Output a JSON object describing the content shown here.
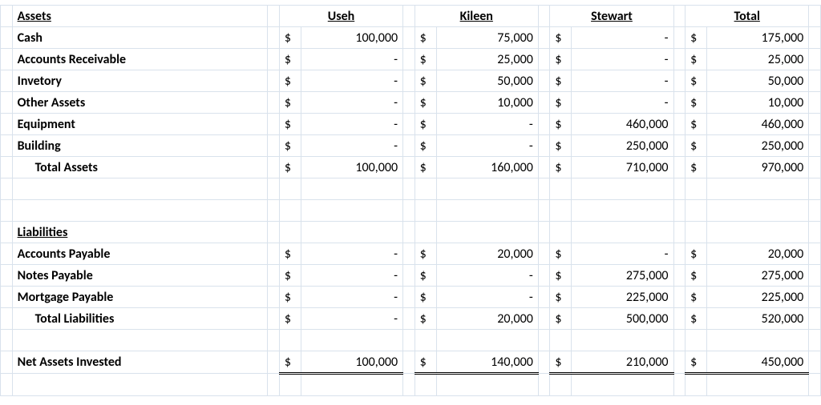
{
  "colors": {
    "grid": "#d9e2ec",
    "text": "#000000",
    "bg": "#ffffff",
    "rule": "#000000"
  },
  "font": {
    "family": "Calibri",
    "size_pt": 12,
    "header_weight": 700
  },
  "columns": [
    "Useh",
    "Kileen",
    "Stewart",
    "Total"
  ],
  "headers": {
    "assets": "Assets",
    "liabilities": "Liabilities"
  },
  "asset_rows": [
    {
      "label": "Cash",
      "v": [
        "100,000",
        "75,000",
        "-",
        "175,000"
      ]
    },
    {
      "label": "Accounts Receivable",
      "v": [
        "-",
        "25,000",
        "-",
        "25,000"
      ]
    },
    {
      "label": "Invetory",
      "v": [
        "-",
        "50,000",
        "-",
        "50,000"
      ]
    },
    {
      "label": "Other Assets",
      "v": [
        "-",
        "10,000",
        "-",
        "10,000"
      ]
    },
    {
      "label": "Equipment",
      "v": [
        "-",
        "-",
        "460,000",
        "460,000"
      ]
    },
    {
      "label": "Building",
      "v": [
        "-",
        "-",
        "250,000",
        "250,000"
      ]
    }
  ],
  "total_assets": {
    "label": "Total Assets",
    "v": [
      "100,000",
      "160,000",
      "710,000",
      "970,000"
    ]
  },
  "liab_rows": [
    {
      "label": "Accounts Payable",
      "v": [
        "-",
        "20,000",
        "-",
        "20,000"
      ]
    },
    {
      "label": "Notes Payable",
      "v": [
        "-",
        "-",
        "275,000",
        "275,000"
      ]
    },
    {
      "label": "Mortgage Payable",
      "v": [
        "-",
        "-",
        "225,000",
        "225,000"
      ]
    }
  ],
  "total_liab": {
    "label": "Total Liabilities",
    "v": [
      "-",
      "20,000",
      "500,000",
      "520,000"
    ]
  },
  "net_assets": {
    "label": "Net Assets Invested",
    "v": [
      "100,000",
      "140,000",
      "210,000",
      "450,000"
    ]
  },
  "currency_symbol": "$"
}
